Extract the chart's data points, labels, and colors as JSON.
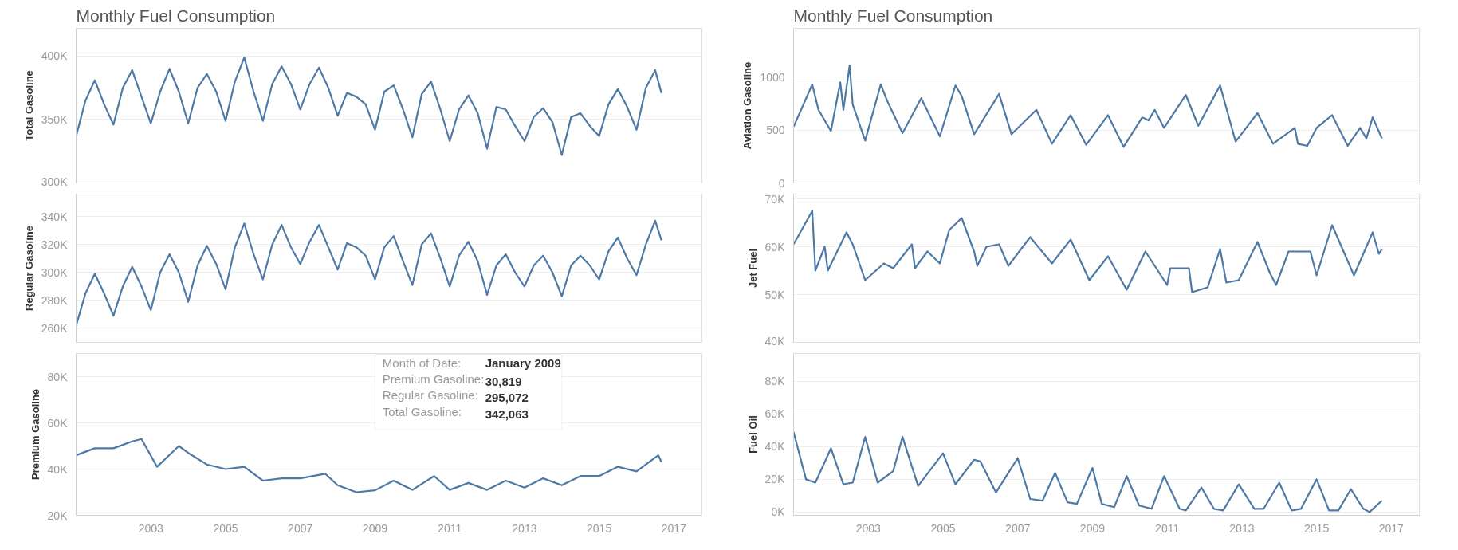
{
  "chart_data": [
    {
      "type": "line",
      "title": "Monthly Fuel Consumption",
      "ylabel": "Total Gasoline",
      "x": [
        "2001-01",
        "2001-04",
        "2001-07",
        "2001-10",
        "2002-01",
        "2002-04",
        "2002-07",
        "2002-10",
        "2003-01",
        "2003-04",
        "2003-07",
        "2003-10",
        "2004-01",
        "2004-04",
        "2004-07",
        "2004-10",
        "2005-01",
        "2005-04",
        "2005-07",
        "2005-10",
        "2006-01",
        "2006-04",
        "2006-07",
        "2006-10",
        "2007-01",
        "2007-04",
        "2007-07",
        "2007-10",
        "2008-01",
        "2008-04",
        "2008-07",
        "2008-10",
        "2009-01",
        "2009-04",
        "2009-07",
        "2009-10",
        "2010-01",
        "2010-04",
        "2010-07",
        "2010-10",
        "2011-01",
        "2011-04",
        "2011-07",
        "2011-10",
        "2012-01",
        "2012-04",
        "2012-07",
        "2012-10",
        "2013-01",
        "2013-04",
        "2013-07",
        "2013-10",
        "2014-01",
        "2014-04",
        "2014-07",
        "2014-10",
        "2015-01",
        "2015-04",
        "2015-07",
        "2015-10",
        "2016-01",
        "2016-04",
        "2016-07",
        "2016-09"
      ],
      "series": [
        {
          "color": "#4e79a7",
          "values": [
            337000,
            365000,
            381000,
            362000,
            346000,
            375000,
            389000,
            368000,
            347000,
            372000,
            390000,
            372000,
            347000,
            375000,
            386000,
            372000,
            349000,
            380000,
            399000,
            372000,
            349000,
            378000,
            392000,
            378000,
            358000,
            378000,
            391000,
            375000,
            353000,
            371000,
            368000,
            362000,
            342063,
            372000,
            377000,
            358000,
            336000,
            370000,
            380000,
            358000,
            333000,
            358000,
            369000,
            355000,
            327000,
            360000,
            358000,
            345000,
            333000,
            352000,
            359000,
            348000,
            322000,
            352000,
            355000,
            345000,
            337000,
            362000,
            374000,
            360000,
            342000,
            375000,
            389000,
            371000
          ]
        }
      ],
      "xlim": [
        "2001-01",
        "2017-10"
      ],
      "xticks": [
        "2003",
        "2005",
        "2007",
        "2009",
        "2011",
        "2013",
        "2015",
        "2017"
      ],
      "ylim": [
        300000,
        422000
      ],
      "yticks": [
        {
          "value": 300000,
          "label": "300K"
        },
        {
          "value": 350000,
          "label": "350K"
        },
        {
          "value": 400000,
          "label": "400K"
        }
      ],
      "grid": "y",
      "tick_labels": "y"
    },
    {
      "type": "line",
      "title": "Monthly Fuel Consumption",
      "ylabel": "Aviation Gasoline",
      "x": [
        "2001-01",
        "2001-07",
        "2001-09",
        "2002-01",
        "2002-04",
        "2002-05",
        "2002-07",
        "2002-08",
        "2002-12",
        "2003-05",
        "2003-07",
        "2003-12",
        "2004-06",
        "2004-12",
        "2005-05",
        "2005-07",
        "2005-11",
        "2006-07",
        "2006-11",
        "2007-07",
        "2007-12",
        "2008-06",
        "2008-11",
        "2009-06",
        "2009-11",
        "2010-05",
        "2010-07",
        "2010-09",
        "2010-12",
        "2011-07",
        "2011-11",
        "2012-06",
        "2012-11",
        "2013-06",
        "2013-11",
        "2014-06",
        "2014-07",
        "2014-10",
        "2015-01",
        "2015-06",
        "2015-11",
        "2016-03",
        "2016-05",
        "2016-07",
        "2016-10"
      ],
      "series": [
        {
          "color": "#4e79a7",
          "values": [
            530,
            930,
            690,
            490,
            950,
            690,
            1110,
            740,
            400,
            930,
            780,
            470,
            800,
            440,
            920,
            820,
            460,
            840,
            460,
            690,
            370,
            640,
            360,
            640,
            340,
            620,
            590,
            690,
            520,
            830,
            540,
            920,
            390,
            660,
            370,
            520,
            370,
            350,
            520,
            640,
            350,
            520,
            420,
            620,
            420
          ]
        }
      ],
      "xlim": [
        "2001-01",
        "2017-10"
      ],
      "xticks": [
        "2003",
        "2005",
        "2007",
        "2009",
        "2011",
        "2013",
        "2015",
        "2017"
      ],
      "ylim": [
        0,
        1460
      ],
      "yticks": [
        0,
        500,
        1000
      ],
      "grid": "y",
      "tick_labels": "y"
    },
    {
      "type": "line",
      "ylabel": "Regular Gasoline",
      "x": [
        "2001-01",
        "2001-04",
        "2001-07",
        "2001-10",
        "2002-01",
        "2002-04",
        "2002-07",
        "2002-10",
        "2003-01",
        "2003-04",
        "2003-07",
        "2003-10",
        "2004-01",
        "2004-04",
        "2004-07",
        "2004-10",
        "2005-01",
        "2005-04",
        "2005-07",
        "2005-10",
        "2006-01",
        "2006-04",
        "2006-07",
        "2006-10",
        "2007-01",
        "2007-04",
        "2007-07",
        "2007-10",
        "2008-01",
        "2008-04",
        "2008-07",
        "2008-10",
        "2009-01",
        "2009-04",
        "2009-07",
        "2009-10",
        "2010-01",
        "2010-04",
        "2010-07",
        "2010-10",
        "2011-01",
        "2011-04",
        "2011-07",
        "2011-10",
        "2012-01",
        "2012-04",
        "2012-07",
        "2012-10",
        "2013-01",
        "2013-04",
        "2013-07",
        "2013-10",
        "2014-01",
        "2014-04",
        "2014-07",
        "2014-10",
        "2015-01",
        "2015-04",
        "2015-07",
        "2015-10",
        "2016-01",
        "2016-04",
        "2016-07",
        "2016-09"
      ],
      "series": [
        {
          "color": "#4e79a7",
          "values": [
            262000,
            285000,
            299000,
            285000,
            269000,
            290000,
            304000,
            290000,
            273000,
            300000,
            313000,
            300000,
            279000,
            305000,
            319000,
            306000,
            288000,
            318000,
            335000,
            313000,
            295000,
            320000,
            334000,
            318000,
            306000,
            322000,
            334000,
            318000,
            302000,
            321000,
            318000,
            312000,
            295072,
            318000,
            326000,
            308000,
            291000,
            320000,
            328000,
            310000,
            290000,
            312000,
            322000,
            308000,
            284000,
            305000,
            313000,
            300000,
            290000,
            305000,
            312000,
            300000,
            283000,
            305000,
            312000,
            305000,
            295000,
            315000,
            325000,
            310000,
            298000,
            320000,
            337000,
            323000
          ]
        }
      ],
      "xlim": [
        "2001-01",
        "2017-10"
      ],
      "xticks": [
        "2003",
        "2005",
        "2007",
        "2009",
        "2011",
        "2013",
        "2015",
        "2017"
      ],
      "ylim": [
        250000,
        356000
      ],
      "yticks": [
        {
          "value": 260000,
          "label": "260K"
        },
        {
          "value": 280000,
          "label": "280K"
        },
        {
          "value": 300000,
          "label": "300K"
        },
        {
          "value": 320000,
          "label": "320K"
        },
        {
          "value": 340000,
          "label": "340K"
        }
      ],
      "grid": "y",
      "tick_labels": "y"
    },
    {
      "type": "line",
      "ylabel": "Jet Fuel",
      "x": [
        "2001-01",
        "2001-07",
        "2001-08",
        "2001-11",
        "2001-12",
        "2002-06",
        "2002-08",
        "2002-12",
        "2003-06",
        "2003-09",
        "2004-03",
        "2004-04",
        "2004-08",
        "2004-12",
        "2005-03",
        "2005-07",
        "2005-11",
        "2005-12",
        "2006-03",
        "2006-07",
        "2006-10",
        "2007-05",
        "2007-12",
        "2008-06",
        "2008-12",
        "2009-06",
        "2009-12",
        "2010-06",
        "2011-01",
        "2011-02",
        "2011-08",
        "2011-09",
        "2012-02",
        "2012-06",
        "2012-08",
        "2012-12",
        "2013-06",
        "2013-10",
        "2013-12",
        "2014-04",
        "2014-11",
        "2015-01",
        "2015-06",
        "2016-01",
        "2016-07",
        "2016-09",
        "2016-10"
      ],
      "series": [
        {
          "color": "#4e79a7",
          "values": [
            60500,
            67500,
            55000,
            60000,
            55000,
            63000,
            60500,
            53000,
            56500,
            55500,
            60500,
            55500,
            59000,
            56500,
            63500,
            66000,
            59000,
            56000,
            60000,
            60500,
            56000,
            62000,
            56500,
            61500,
            53000,
            58000,
            51000,
            59000,
            52000,
            55500,
            55500,
            50500,
            51500,
            59500,
            52500,
            53000,
            61000,
            54500,
            52000,
            59000,
            59000,
            54000,
            64500,
            54000,
            63000,
            58500,
            59500
          ]
        }
      ],
      "xlim": [
        "2001-01",
        "2017-10"
      ],
      "xticks": [
        "2003",
        "2005",
        "2007",
        "2009",
        "2011",
        "2013",
        "2015",
        "2017"
      ],
      "ylim": [
        40000,
        71000
      ],
      "yticks": [
        {
          "value": 40000,
          "label": "40K"
        },
        {
          "value": 50000,
          "label": "50K"
        },
        {
          "value": 60000,
          "label": "60K"
        },
        {
          "value": 70000,
          "label": "70K"
        }
      ],
      "grid": "y",
      "tick_labels": "y"
    },
    {
      "type": "line",
      "ylabel": "Premium Gasoline",
      "x": [
        "2001-01",
        "2001-07",
        "2002-01",
        "2002-07",
        "2002-10",
        "2003-03",
        "2003-10",
        "2004-01",
        "2004-07",
        "2005-01",
        "2005-07",
        "2006-01",
        "2006-07",
        "2007-01",
        "2007-09",
        "2008-01",
        "2008-07",
        "2009-01",
        "2009-07",
        "2010-01",
        "2010-08",
        "2011-01",
        "2011-07",
        "2012-01",
        "2012-07",
        "2013-01",
        "2013-07",
        "2014-01",
        "2014-07",
        "2015-01",
        "2015-07",
        "2016-01",
        "2016-08",
        "2016-09"
      ],
      "series": [
        {
          "color": "#4e79a7",
          "values": [
            46000,
            49000,
            49000,
            52000,
            53000,
            41000,
            50000,
            47000,
            42000,
            40000,
            41000,
            35000,
            36000,
            36000,
            38000,
            33000,
            30000,
            30819,
            35000,
            31000,
            37000,
            31000,
            34000,
            31000,
            35000,
            32000,
            36000,
            33000,
            37000,
            37000,
            41000,
            39000,
            46000,
            43000
          ]
        }
      ],
      "xlim": [
        "2001-01",
        "2017-10"
      ],
      "xticks": [
        "2003",
        "2005",
        "2007",
        "2009",
        "2011",
        "2013",
        "2015",
        "2017"
      ],
      "ylim": [
        20000,
        90000
      ],
      "yticks": [
        {
          "value": 20000,
          "label": "20K"
        },
        {
          "value": 40000,
          "label": "40K"
        },
        {
          "value": 60000,
          "label": "60K"
        },
        {
          "value": 80000,
          "label": "80K"
        }
      ],
      "grid": "y",
      "annotations": [
        "Month of Date:",
        "January 2009",
        "Premium Gasoline:",
        "30,819",
        "Regular Gasoline:",
        "295,072",
        "Total Gasoline:",
        "342,063"
      ]
    },
    {
      "type": "line",
      "ylabel": "Fuel Oil",
      "x": [
        "2001-01",
        "2001-05",
        "2001-08",
        "2002-01",
        "2002-05",
        "2002-08",
        "2002-12",
        "2003-04",
        "2003-09",
        "2003-12",
        "2004-05",
        "2005-01",
        "2005-05",
        "2005-11",
        "2006-01",
        "2006-06",
        "2007-01",
        "2007-05",
        "2007-09",
        "2008-01",
        "2008-05",
        "2008-08",
        "2009-01",
        "2009-04",
        "2009-08",
        "2009-12",
        "2010-04",
        "2010-08",
        "2010-12",
        "2011-05",
        "2011-07",
        "2011-12",
        "2012-04",
        "2012-07",
        "2012-12",
        "2013-05",
        "2013-08",
        "2014-01",
        "2014-05",
        "2014-08",
        "2015-01",
        "2015-05",
        "2015-08",
        "2015-12",
        "2016-04",
        "2016-06",
        "2016-10"
      ],
      "series": [
        {
          "color": "#4e79a7",
          "values": [
            49000,
            20000,
            18000,
            39000,
            17000,
            18000,
            46000,
            18000,
            25000,
            46000,
            16000,
            36000,
            17000,
            32000,
            31000,
            12000,
            33000,
            8000,
            7000,
            24000,
            6000,
            5000,
            27000,
            5000,
            3000,
            22000,
            4000,
            2000,
            22000,
            2000,
            1000,
            15000,
            2000,
            1000,
            17000,
            2000,
            2000,
            18000,
            1000,
            2000,
            20000,
            1000,
            1000,
            14000,
            2000,
            0,
            7000
          ]
        }
      ],
      "xlim": [
        "2001-01",
        "2017-10"
      ],
      "xticks": [
        "2003",
        "2005",
        "2007",
        "2009",
        "2011",
        "2013",
        "2015",
        "2017"
      ],
      "ylim": [
        -2000,
        97000
      ],
      "yticks": [
        {
          "value": 0,
          "label": "0K"
        },
        {
          "value": 20000,
          "label": "20K"
        },
        {
          "value": 40000,
          "label": "40K"
        },
        {
          "value": 60000,
          "label": "60K"
        },
        {
          "value": 80000,
          "label": "80K"
        }
      ],
      "grid": "y"
    }
  ]
}
